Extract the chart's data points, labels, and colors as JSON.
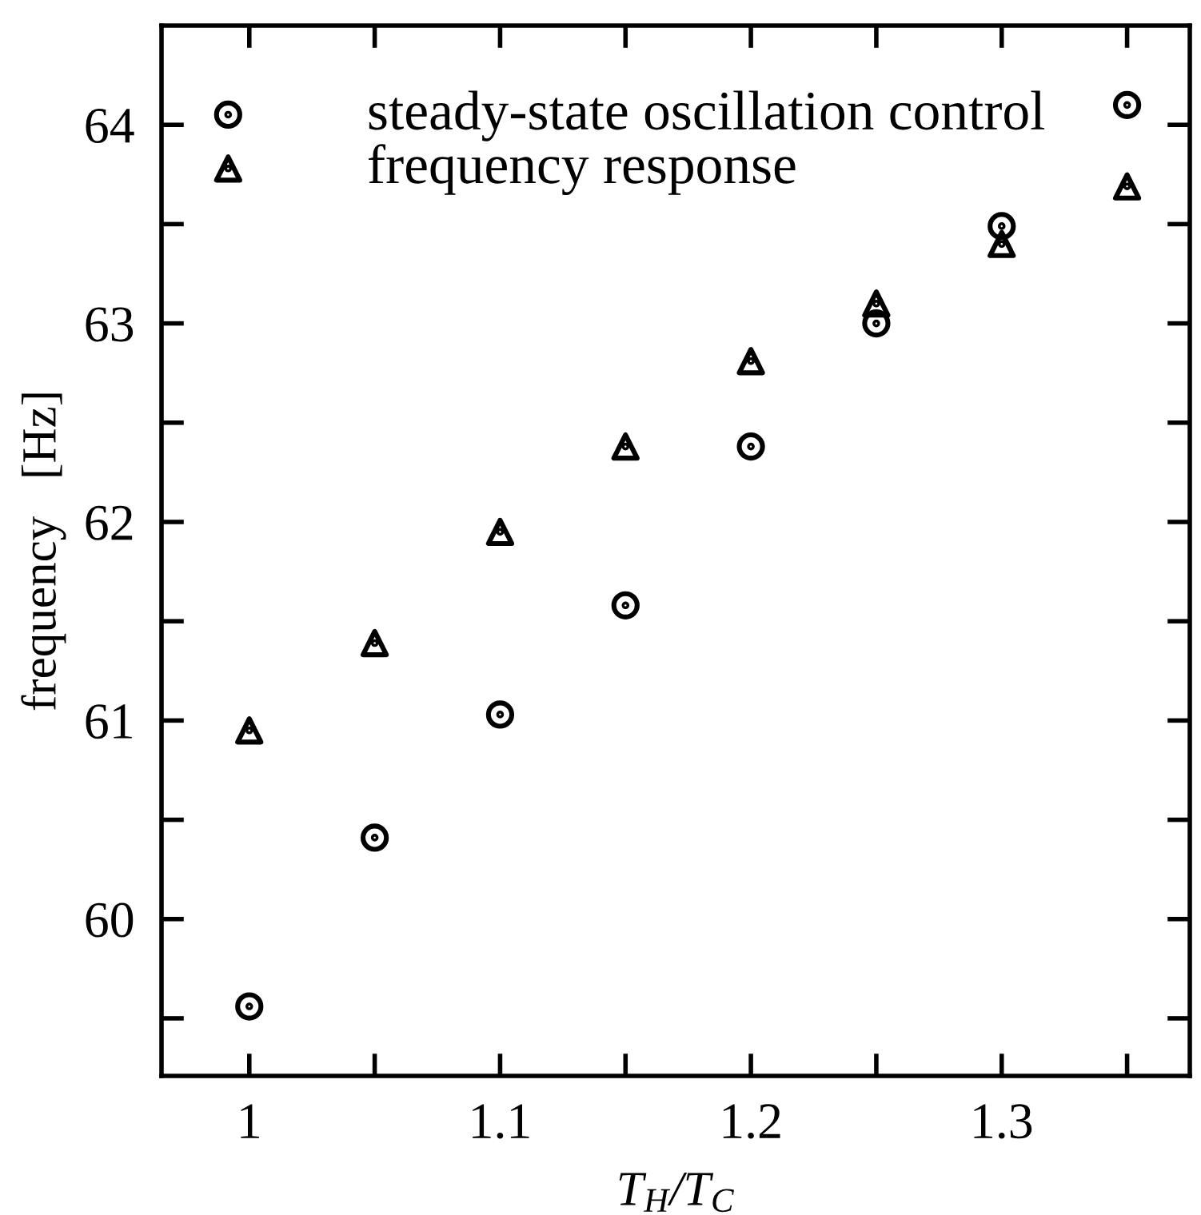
{
  "chart_data": {
    "type": "scatter",
    "xlabel": "T$_{H}$/T$_{C}$",
    "ylabel": "frequency   [Hz]",
    "x": [
      1.0,
      1.05,
      1.1,
      1.15,
      1.2,
      1.25,
      1.3,
      1.35
    ],
    "series": [
      {
        "name": "steady-state oscillation control",
        "color": "#000000",
        "marker": "circle",
        "values": [
          59.56,
          60.41,
          61.03,
          61.58,
          62.38,
          63.0,
          63.49,
          64.1
        ]
      },
      {
        "name": "frequency response",
        "color": "#000000",
        "marker": "triangle",
        "values": [
          60.95,
          61.39,
          61.95,
          62.38,
          62.81,
          63.1,
          63.4,
          63.69
        ]
      }
    ],
    "xlim": [
      0.965,
      1.375
    ],
    "ylim": [
      59.21,
      64.5
    ],
    "xticks": [
      1,
      {
        "value": 1.05,
        "label": null
      },
      1.1,
      {
        "value": 1.15,
        "label": null
      },
      1.2,
      {
        "value": 1.25,
        "label": null
      },
      1.3,
      {
        "value": 1.35,
        "label": null
      }
    ],
    "yticks": [
      {
        "value": 59.5,
        "label": null
      },
      60,
      {
        "value": 60.5,
        "label": null
      },
      61,
      {
        "value": 61.5,
        "label": null
      },
      62,
      {
        "value": 62.5,
        "label": null
      },
      63,
      {
        "value": 63.5,
        "label": null
      },
      64
    ],
    "grid": false,
    "legend": "top left"
  }
}
